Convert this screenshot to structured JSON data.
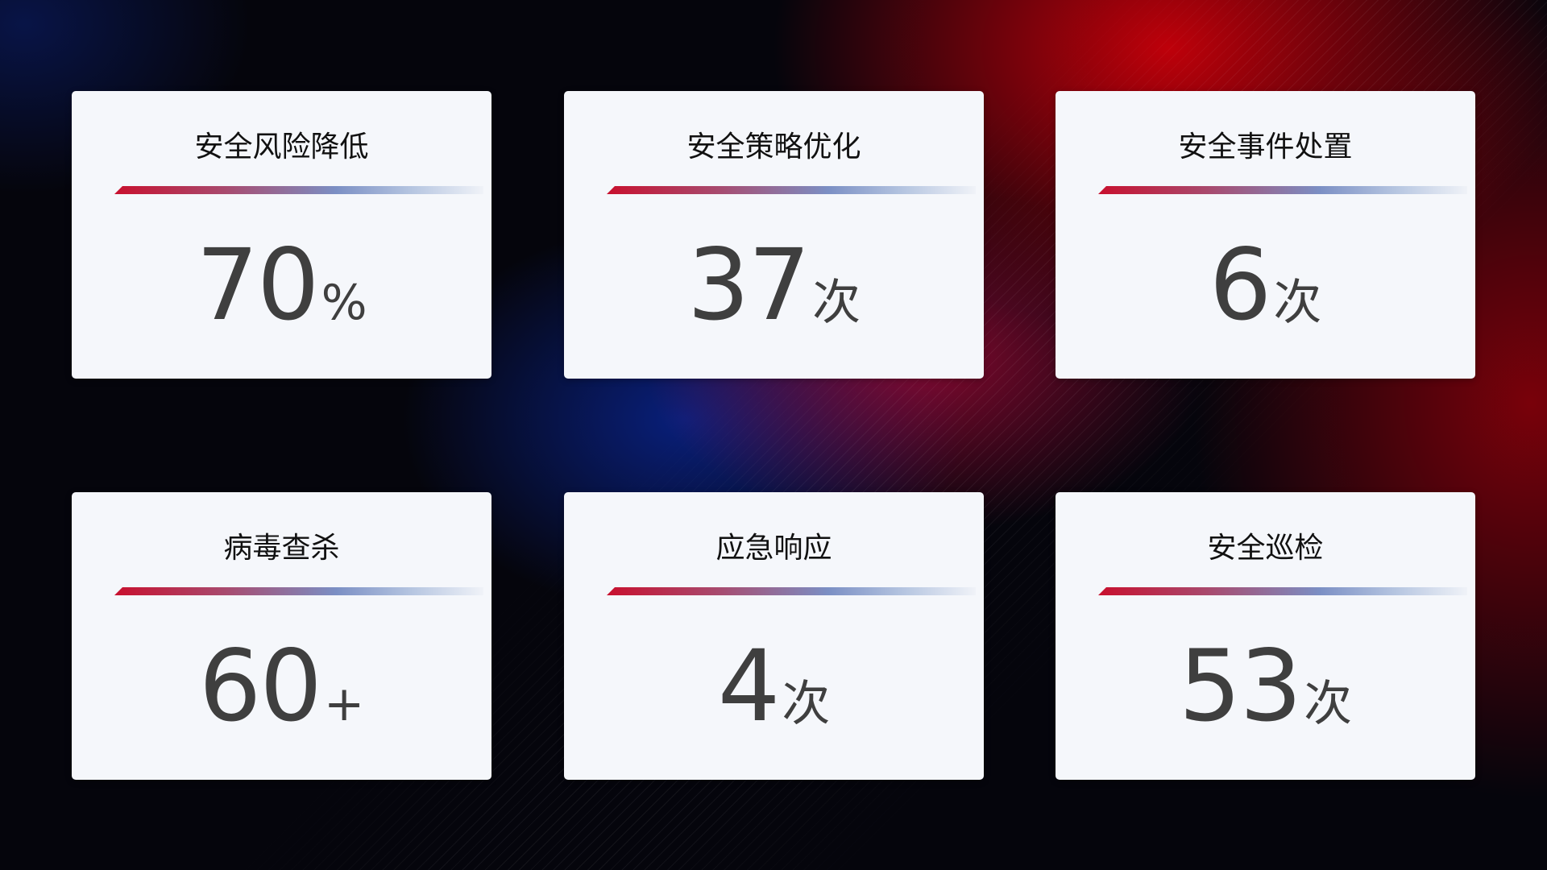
{
  "cards": [
    {
      "title": "安全风险降低",
      "value": "70",
      "unit": "%"
    },
    {
      "title": "安全策略优化",
      "value": "37",
      "unit": "次"
    },
    {
      "title": "安全事件处置",
      "value": "6",
      "unit": "次"
    },
    {
      "title": "病毒查杀",
      "value": "60",
      "unit": "+"
    },
    {
      "title": "应急响应",
      "value": "4",
      "unit": "次"
    },
    {
      "title": "安全巡检",
      "value": "53",
      "unit": "次"
    }
  ],
  "colors": {
    "accent_red": "#c8102e",
    "accent_blue": "#7b8fc4",
    "card_bg": "#f5f7fb",
    "value_text": "#3f3f3f"
  }
}
